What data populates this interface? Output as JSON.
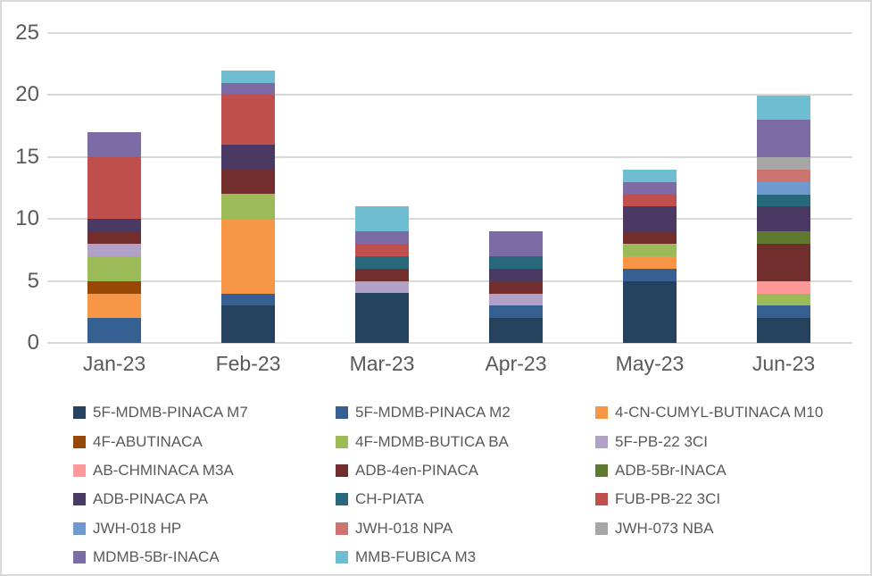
{
  "styles": {
    "background_color": "#FFFFFF",
    "frame_border_color": "#D9D9D9",
    "gridline_color": "#D9D9D9",
    "text_color": "#595959"
  },
  "chart_data": {
    "type": "bar",
    "stacked": true,
    "title": "",
    "xlabel": "",
    "ylabel": "",
    "categories": [
      "Jan-23",
      "Feb-23",
      "Mar-23",
      "Apr-23",
      "May-23",
      "Jun-23"
    ],
    "series": [
      {
        "name": "5F-MDMB-PINACA M7",
        "color": "#24415E",
        "values": [
          0,
          3,
          4,
          2,
          5,
          2
        ]
      },
      {
        "name": "5F-MDMB-PINACA M2",
        "color": "#376092",
        "values": [
          2,
          1,
          0,
          1,
          1,
          1
        ]
      },
      {
        "name": "4-CN-CUMYL-BUTINACA M10",
        "color": "#F79646",
        "values": [
          2,
          6,
          0,
          0,
          1,
          0
        ]
      },
      {
        "name": "4F-ABUTINACA",
        "color": "#974706",
        "values": [
          1,
          0,
          0,
          0,
          0,
          0
        ]
      },
      {
        "name": "4F-MDMB-BUTICA BA",
        "color": "#9BBB59",
        "values": [
          2,
          2,
          0,
          0,
          1,
          1
        ]
      },
      {
        "name": "5F-PB-22 3CI",
        "color": "#B2A1C7",
        "values": [
          1,
          0,
          1,
          1,
          0,
          0
        ]
      },
      {
        "name": "AB-CHMINACA M3A",
        "color": "#FD9A99",
        "values": [
          0,
          0,
          0,
          0,
          0,
          1
        ]
      },
      {
        "name": "ADB-4en-PINACA",
        "color": "#722D2D",
        "values": [
          1,
          2,
          1,
          1,
          1,
          3
        ]
      },
      {
        "name": "ADB-5Br-INACA",
        "color": "#5F7A2E",
        "values": [
          0,
          0,
          0,
          0,
          0,
          1
        ]
      },
      {
        "name": "ADB-PINACA PA",
        "color": "#4A3A63",
        "values": [
          1,
          2,
          0,
          1,
          2,
          2
        ]
      },
      {
        "name": "CH-PIATA",
        "color": "#27697A",
        "values": [
          0,
          0,
          1,
          1,
          0,
          1
        ]
      },
      {
        "name": "FUB-PB-22 3CI",
        "color": "#C0504D",
        "values": [
          5,
          4,
          1,
          0,
          1,
          0
        ]
      },
      {
        "name": "JWH-018 HP",
        "color": "#7099D0",
        "values": [
          0,
          0,
          0,
          0,
          0,
          1
        ]
      },
      {
        "name": "JWH-018 NPA",
        "color": "#CB7470",
        "values": [
          0,
          0,
          0,
          0,
          0,
          1
        ]
      },
      {
        "name": "JWH-073 NBA",
        "color": "#A6A6A6",
        "values": [
          0,
          0,
          0,
          0,
          0,
          1
        ]
      },
      {
        "name": "MDMB-5Br-INACA",
        "color": "#7D6BA6",
        "values": [
          2,
          1,
          1,
          2,
          1,
          3
        ]
      },
      {
        "name": "MMB-FUBICA M3",
        "color": "#6FBDD1",
        "values": [
          0,
          1,
          2,
          0,
          1,
          2
        ]
      }
    ],
    "monthly_totals": [
      17,
      22,
      11,
      9,
      14,
      20
    ],
    "ylim": [
      0,
      25
    ],
    "yticks": [
      25,
      20,
      15,
      10,
      5,
      0
    ],
    "grid": true,
    "legend_position": "bottom",
    "legend_columns": 3
  }
}
